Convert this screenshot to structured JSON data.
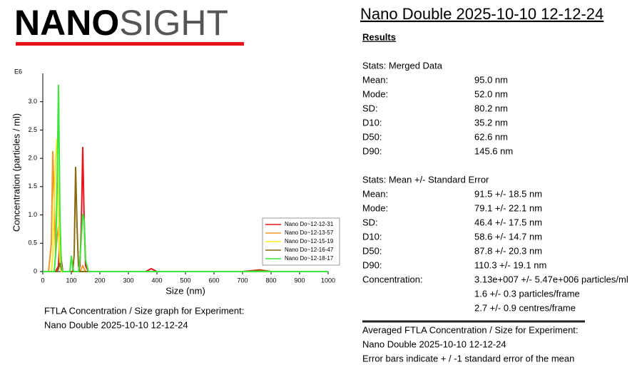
{
  "logo": {
    "bold": "NANO",
    "light": "SIGHT"
  },
  "title": "Nano Double 2025-10-10 12-12-24",
  "chart_data": {
    "type": "line",
    "y_multiplier": "E6",
    "x_label": "Size (nm)",
    "y_label": "Concentration (particles / ml)",
    "x": [
      0,
      20,
      30,
      35,
      40,
      45,
      50,
      55,
      60,
      65,
      70,
      80,
      95,
      100,
      105,
      110,
      115,
      120,
      125,
      130,
      135,
      140,
      145,
      150,
      160,
      200,
      360,
      380,
      400,
      700,
      760,
      800,
      1000
    ],
    "series": [
      {
        "name": "Nano Do~12-12-31",
        "color": "#e8141c",
        "values": [
          0,
          0,
          0,
          0,
          0,
          0,
          0.05,
          0.1,
          0.6,
          0.2,
          0,
          0,
          0,
          0,
          0,
          0,
          0,
          0,
          0,
          0.1,
          0.8,
          2.2,
          0.9,
          0.1,
          0,
          0,
          0,
          0.05,
          0,
          0,
          0.03,
          0,
          0
        ]
      },
      {
        "name": "Nano Do~12-13-57",
        "color": "#f0962a",
        "values": [
          0,
          0,
          0.5,
          2.13,
          1.2,
          0.3,
          0.6,
          0.8,
          0.2,
          0,
          0,
          0,
          0,
          0,
          0,
          0,
          0,
          0,
          0,
          0,
          0.05,
          0.1,
          0.05,
          0,
          0,
          0,
          0,
          0,
          0,
          0,
          0.02,
          0,
          0
        ]
      },
      {
        "name": "Nano Do~12-15-19",
        "color": "#f4f01e",
        "values": [
          0,
          0,
          0,
          0.3,
          1.2,
          2.0,
          2.35,
          1.0,
          0.2,
          0,
          0,
          0,
          0,
          0,
          0,
          0,
          0,
          0,
          0,
          0,
          0,
          0,
          0,
          0,
          0,
          0,
          0,
          0,
          0,
          0,
          0,
          0,
          0
        ]
      },
      {
        "name": "Nano Do~12-16-47",
        "color": "#8a6a10",
        "values": [
          0,
          0,
          0,
          0,
          0,
          0,
          0,
          0.05,
          0.15,
          0.05,
          0,
          0,
          0,
          0,
          0,
          0.3,
          1.85,
          0.8,
          0.1,
          0,
          0,
          0,
          0,
          0,
          0,
          0,
          0,
          0,
          0,
          0,
          0.02,
          0,
          0
        ]
      },
      {
        "name": "Nano Do~12-18-17",
        "color": "#3ce63c",
        "values": [
          0,
          0,
          0,
          0,
          0,
          0.3,
          1.5,
          3.3,
          1.0,
          0.1,
          0,
          0,
          0,
          0.28,
          0.05,
          0,
          0,
          0,
          0,
          0.2,
          0.6,
          1.02,
          0.9,
          0.2,
          0,
          0,
          0,
          0,
          0,
          0,
          0,
          0,
          0
        ]
      }
    ],
    "xlim": [
      0,
      1000
    ],
    "xticks": [
      0,
      100,
      200,
      300,
      400,
      500,
      600,
      700,
      800,
      900,
      1000
    ],
    "ylim": [
      0,
      3.5
    ],
    "yticks": [
      0,
      0.5,
      {
        "value": 1,
        "label": "1.0"
      },
      1.5,
      {
        "value": 2,
        "label": "2.0"
      },
      2.5,
      {
        "value": 3,
        "label": "3.0"
      }
    ],
    "legend": "right"
  },
  "chart_caption": [
    "FTLA Concentration / Size graph for Experiment:",
    "Nano Double 2025-10-10 12-12-24"
  ],
  "results": {
    "heading": "Results",
    "merged": {
      "title": "Stats: Merged Data",
      "rows": [
        [
          "Mean:",
          "95.0 nm"
        ],
        [
          "Mode:",
          "52.0 nm"
        ],
        [
          "SD:",
          "80.2 nm"
        ],
        [
          "D10:",
          "35.2 nm"
        ],
        [
          "D50:",
          "62.6 nm"
        ],
        [
          "D90:",
          "145.6 nm"
        ]
      ]
    },
    "mean_se": {
      "title": "Stats: Mean +/- Standard Error",
      "rows": [
        [
          "Mean:",
          "91.5 +/- 18.5 nm"
        ],
        [
          "Mode:",
          "79.1 +/- 22.1 nm"
        ],
        [
          "SD:",
          "46.4 +/- 17.5 nm"
        ],
        [
          "D10:",
          "58.6 +/- 14.7 nm"
        ],
        [
          "D50:",
          "87.8 +/- 20.3 nm"
        ],
        [
          "D90:",
          "110.3 +/- 19.1 nm"
        ]
      ],
      "concentration": {
        "label": "Concentration:",
        "lines": [
          "3.13e+007 +/- 5.47e+006 particles/ml",
          "1.6 +/- 0.3 particles/frame",
          "2.7 +/- 0.9 centres/frame"
        ]
      }
    }
  },
  "averaged_caption": [
    "Averaged FTLA Concentration / Size for Experiment:",
    "Nano Double 2025-10-10 12-12-24",
    "Error bars indicate + / -1 standard error of the mean"
  ]
}
